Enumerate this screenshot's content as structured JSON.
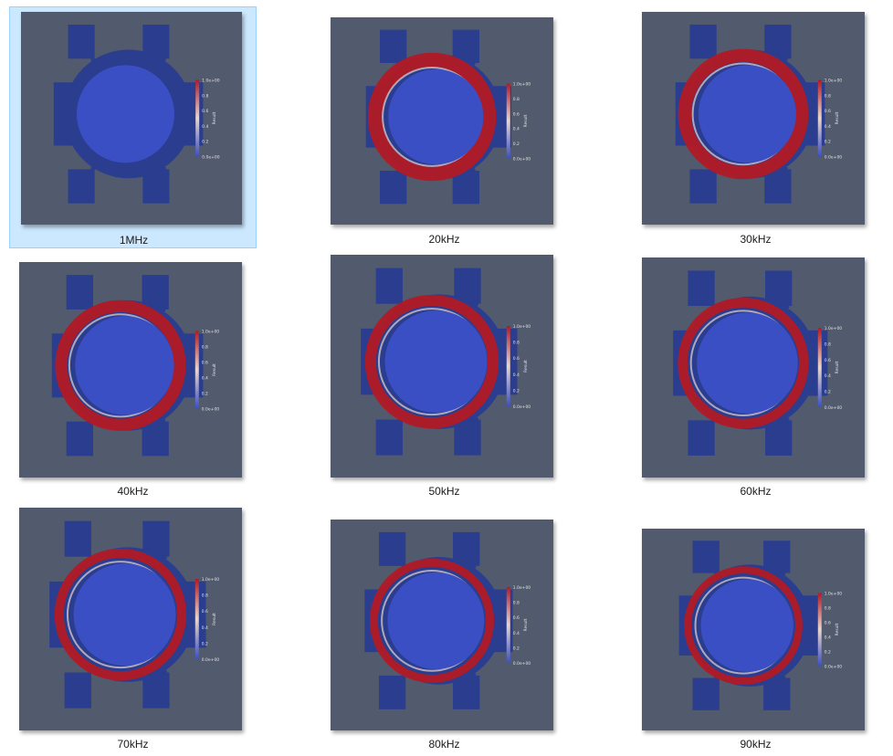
{
  "app": {
    "view": "large-icons",
    "selected_index": 0
  },
  "colors": {
    "background": "#525a6e",
    "pad": "#2a3d8f",
    "hot": "#b11a25",
    "mid": "#e8d6cc",
    "cold": "#3b4fc4",
    "selection_fill": "#cce8ff",
    "selection_border": "#99d1ff"
  },
  "legend": {
    "max_label": "1.0e+00",
    "ticks": [
      "0.8",
      "0.6",
      "0.4",
      "0.2"
    ],
    "min_label": "0.0e+00",
    "title": "Result"
  },
  "files": [
    {
      "label": "1MHz",
      "icon": "simulation-thumbnail",
      "heat": 0.0
    },
    {
      "label": "20kHz",
      "icon": "simulation-thumbnail",
      "heat": 1.0
    },
    {
      "label": "30kHz",
      "icon": "simulation-thumbnail",
      "heat": 0.9
    },
    {
      "label": "40kHz",
      "icon": "simulation-thumbnail",
      "heat": 0.8
    },
    {
      "label": "50kHz",
      "icon": "simulation-thumbnail",
      "heat": 0.7
    },
    {
      "label": "60kHz",
      "icon": "simulation-thumbnail",
      "heat": 0.6
    },
    {
      "label": "70kHz",
      "icon": "simulation-thumbnail",
      "heat": 0.55
    },
    {
      "label": "80kHz",
      "icon": "simulation-thumbnail",
      "heat": 0.5
    },
    {
      "label": "90kHz",
      "icon": "simulation-thumbnail",
      "heat": 0.45
    }
  ]
}
